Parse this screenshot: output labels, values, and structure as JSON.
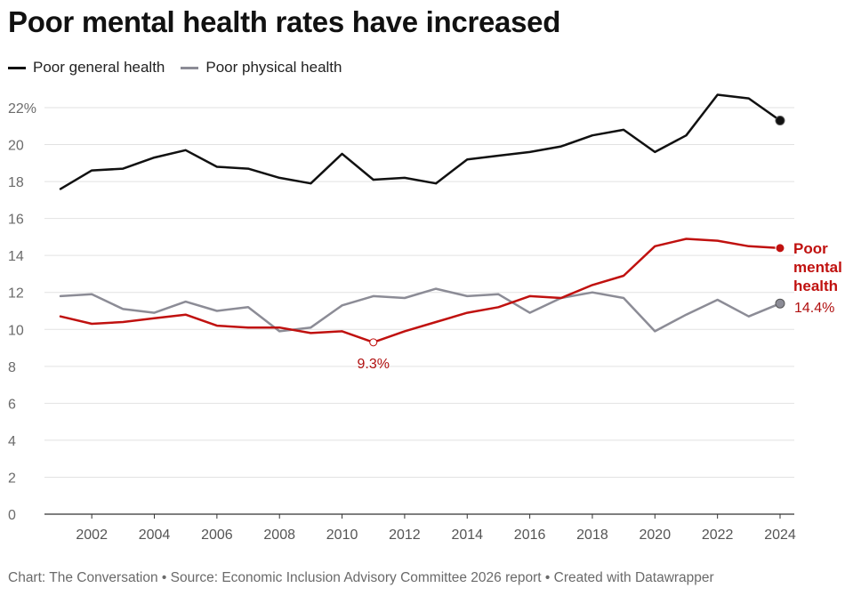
{
  "title": "Poor mental health rates have increased",
  "legend": [
    {
      "label": "Poor general health",
      "color": "#111111"
    },
    {
      "label": "Poor physical health",
      "color": "#8c8c96"
    }
  ],
  "footer": "Chart: The Conversation • Source: Economic Inclusion Advisory Committee 2026 report • Created with Datawrapper",
  "chart_data": {
    "type": "line",
    "title": "Poor mental health rates have increased",
    "xlim": [
      2001,
      2024
    ],
    "ylim": [
      0,
      22
    ],
    "x_ticks": [
      2002,
      2004,
      2006,
      2008,
      2010,
      2012,
      2014,
      2016,
      2018,
      2020,
      2022,
      2024
    ],
    "y_ticks": [
      0,
      2,
      4,
      6,
      8,
      10,
      12,
      14,
      16,
      18,
      20,
      22
    ],
    "y_tick_labels": [
      "0",
      "2",
      "4",
      "6",
      "8",
      "10",
      "12",
      "14",
      "16",
      "18",
      "20",
      "22%"
    ],
    "x": [
      2001,
      2002,
      2003,
      2004,
      2005,
      2006,
      2007,
      2008,
      2009,
      2010,
      2011,
      2012,
      2013,
      2014,
      2015,
      2016,
      2017,
      2018,
      2019,
      2020,
      2021,
      2022,
      2023,
      2024
    ],
    "grid": true,
    "legend_position": "top-left",
    "series": [
      {
        "name": "Poor general health",
        "color": "#111111",
        "values": [
          17.6,
          18.6,
          18.7,
          19.3,
          19.7,
          18.8,
          18.7,
          18.2,
          17.9,
          19.5,
          18.1,
          18.2,
          17.9,
          19.2,
          19.4,
          19.6,
          19.9,
          20.5,
          20.8,
          19.6,
          20.5,
          22.7,
          22.5,
          21.3
        ]
      },
      {
        "name": "Poor physical health",
        "color": "#8c8c96",
        "values": [
          11.8,
          11.9,
          11.1,
          10.9,
          11.5,
          11.0,
          11.2,
          9.9,
          10.1,
          11.3,
          11.8,
          11.7,
          12.2,
          11.8,
          11.9,
          10.9,
          11.7,
          12.0,
          11.7,
          9.9,
          10.8,
          11.6,
          10.7,
          11.4
        ]
      },
      {
        "name": "Poor mental health",
        "color": "#c0110f",
        "values": [
          10.7,
          10.3,
          10.4,
          10.6,
          10.8,
          10.2,
          10.1,
          10.1,
          9.8,
          9.9,
          9.3,
          9.9,
          10.4,
          10.9,
          11.2,
          11.8,
          11.7,
          12.4,
          12.9,
          14.5,
          14.9,
          14.8,
          14.5,
          14.4
        ]
      }
    ],
    "annotations": {
      "mental_label_lines": [
        "Poor",
        "mental",
        "health"
      ],
      "mental_end_value": "14.4%",
      "mental_min_value": "9.3%",
      "mental_min_year": 2011
    }
  }
}
